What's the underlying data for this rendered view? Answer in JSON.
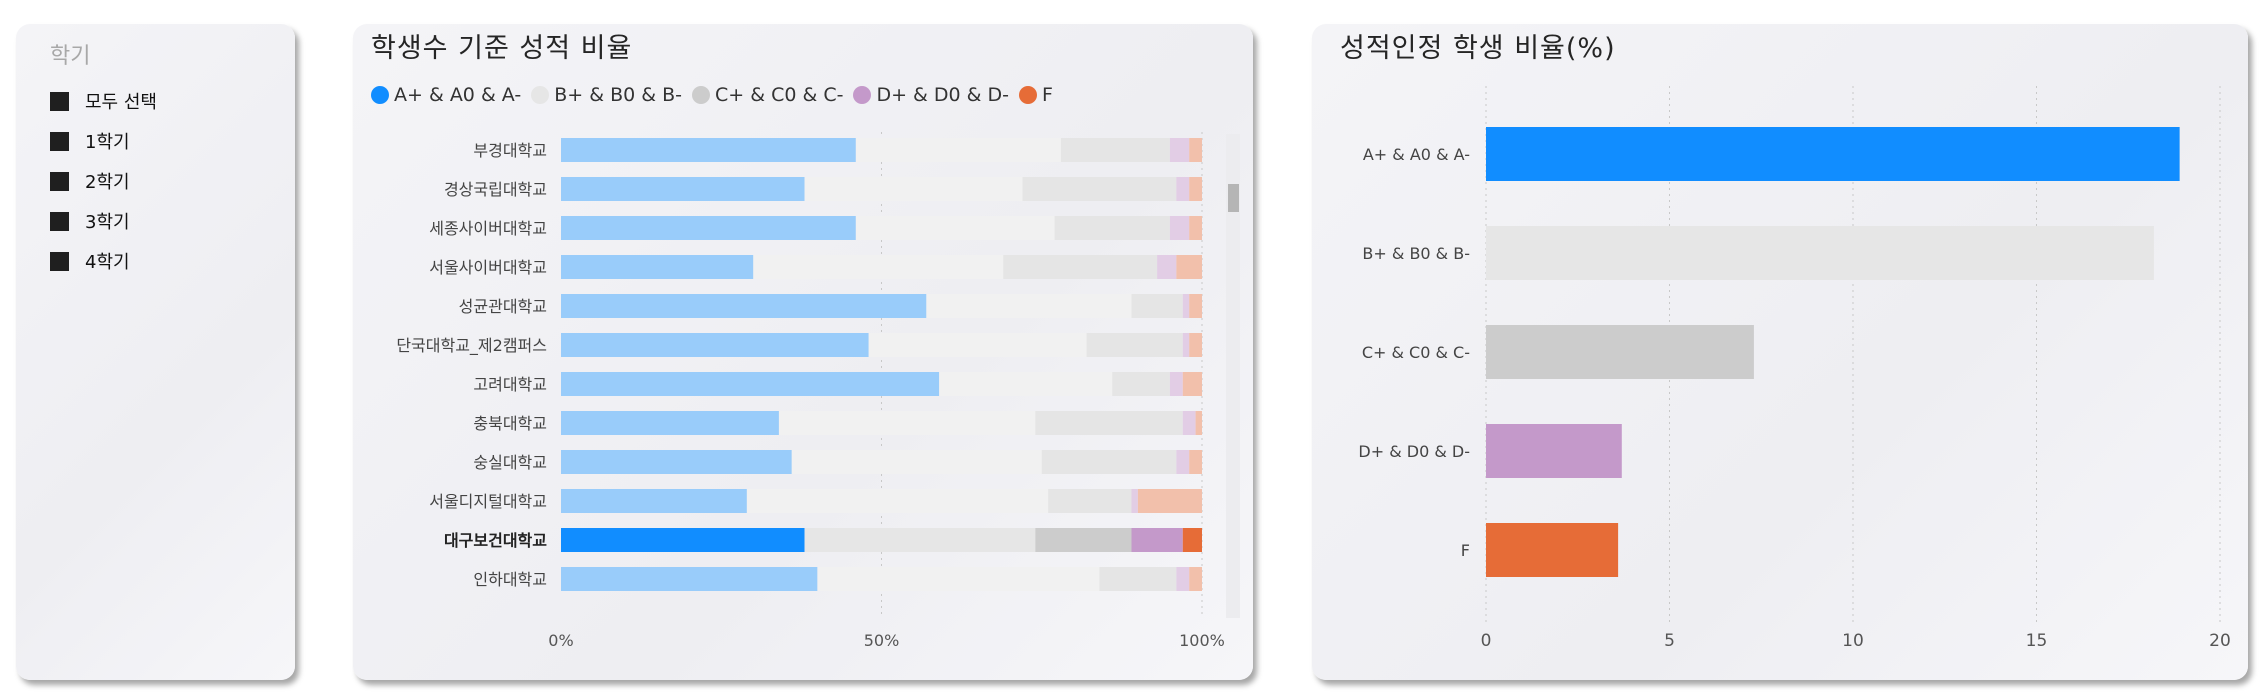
{
  "slicer": {
    "title": "학기",
    "items": [
      "모두 선택",
      "1학기",
      "2학기",
      "3학기",
      "4학기"
    ]
  },
  "colors": {
    "a": "#118dff",
    "b": "#e6e6e6",
    "c": "#cccccc",
    "d": "#c499ca",
    "f": "#e66c37"
  },
  "chart_data": [
    {
      "type": "bar",
      "orientation": "horizontal",
      "stacked": "100%",
      "title": "학생수 기준 성적 비율",
      "legend": [
        "A+ & A0 & A-",
        "B+ & B0 & B-",
        "C+ & C0 & C-",
        "D+ & D0 & D-",
        "F"
      ],
      "legend_placement": "top-left",
      "x_ticks": [
        "0%",
        "50%",
        "100%"
      ],
      "highlighted_category": "대구보건대학교",
      "categories": [
        "부경대학교",
        "경상국립대학교",
        "세종사이버대학교",
        "서울사이버대학교",
        "성균관대학교",
        "단국대학교_제2캠퍼스",
        "고려대학교",
        "충북대학교",
        "숭실대학교",
        "서울디지털대학교",
        "대구보건대학교",
        "인하대학교"
      ],
      "series": [
        {
          "name": "A+ & A0 & A-",
          "values": [
            46,
            38,
            46,
            30,
            57,
            48,
            59,
            34,
            36,
            29,
            38,
            40
          ]
        },
        {
          "name": "B+ & B0 & B-",
          "values": [
            32,
            34,
            31,
            39,
            32,
            34,
            27,
            40,
            39,
            47,
            36,
            44
          ]
        },
        {
          "name": "C+ & C0 & C-",
          "values": [
            17,
            24,
            18,
            24,
            8,
            15,
            9,
            23,
            21,
            13,
            15,
            12
          ]
        },
        {
          "name": "D+ & D0 & D-",
          "values": [
            3,
            2,
            3,
            3,
            1,
            1,
            2,
            2,
            2,
            1,
            8,
            2
          ]
        },
        {
          "name": "F",
          "values": [
            2,
            2,
            2,
            4,
            2,
            2,
            3,
            1,
            2,
            10,
            3,
            2
          ]
        }
      ]
    },
    {
      "type": "bar",
      "orientation": "horizontal",
      "title": "성적인정 학생 비율(%)",
      "categories": [
        "A+ & A0 & A-",
        "B+ & B0 & B-",
        "C+ & C0 & C-",
        "D+ & D0 & D-",
        "F"
      ],
      "values": [
        18.9,
        18.2,
        7.3,
        3.7,
        3.6
      ],
      "xlim": [
        0,
        20
      ],
      "x_ticks": [
        "0",
        "5",
        "10",
        "15",
        "20"
      ],
      "grid": "vertical dotted"
    }
  ]
}
